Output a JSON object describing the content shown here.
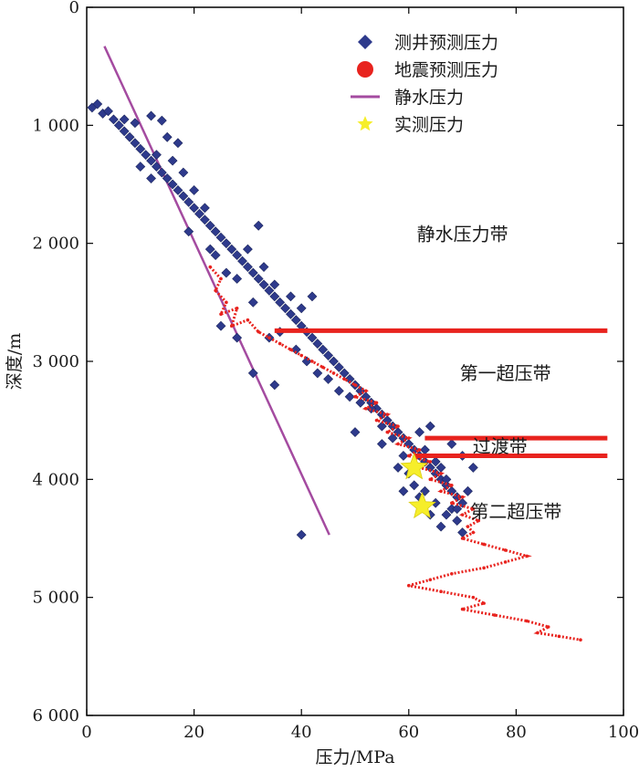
{
  "chart_data": {
    "type": "scatter",
    "xlabel": "压力/MPa",
    "ylabel": "深度/m",
    "xlim": [
      0,
      100
    ],
    "ylim": [
      0,
      6000
    ],
    "y_inverted": true,
    "x_ticks": [
      "0",
      "20",
      "40",
      "60",
      "80",
      "100"
    ],
    "y_ticks": [
      "0",
      "1 000",
      "2 000",
      "3 000",
      "4 000",
      "5 000",
      "6 000"
    ],
    "grid": false,
    "legend_position": "top-right",
    "legend": [
      {
        "label": "测井预测压力",
        "marker": "diamond",
        "color": "#2e3a8c"
      },
      {
        "label": "地震预测压力",
        "marker": "circle",
        "color": "#e8231e"
      },
      {
        "label": "静水压力",
        "marker": "line",
        "color": "#a44ba0"
      },
      {
        "label": "实测压力",
        "marker": "star",
        "color": "#f6ee2a"
      }
    ],
    "zones": [
      {
        "label": "静水压力带",
        "x": 70,
        "depth": 1920
      },
      {
        "label": "第一超压带",
        "x": 78,
        "depth": 3100
      },
      {
        "label": "过渡带",
        "x": 77,
        "depth": 3720
      },
      {
        "label": "第二超压带",
        "x": 80,
        "depth": 4270
      }
    ],
    "boundaries": [
      {
        "depth": 2740,
        "x_start": 35,
        "x_end": 97
      },
      {
        "depth": 3650,
        "x_start": 63,
        "x_end": 97
      },
      {
        "depth": 3800,
        "x_start": 61,
        "x_end": 97
      }
    ],
    "series": [
      {
        "name": "静水压力",
        "kind": "line",
        "points": [
          [
            3.3,
            330
          ],
          [
            45.2,
            4470
          ]
        ]
      },
      {
        "name": "实测压力",
        "kind": "star",
        "points": [
          [
            61,
            3900
          ],
          [
            62.5,
            4230
          ]
        ]
      },
      {
        "name": "测井预测压力",
        "kind": "diamond",
        "points": [
          [
            1,
            850
          ],
          [
            2,
            820
          ],
          [
            3,
            900
          ],
          [
            4,
            880
          ],
          [
            5,
            950
          ],
          [
            6,
            1000
          ],
          [
            7,
            1050
          ],
          [
            8,
            1100
          ],
          [
            9,
            1150
          ],
          [
            10,
            1200
          ],
          [
            11,
            1250
          ],
          [
            12,
            1300
          ],
          [
            13,
            1350
          ],
          [
            14,
            1400
          ],
          [
            15,
            1450
          ],
          [
            16,
            1500
          ],
          [
            17,
            1550
          ],
          [
            18,
            1600
          ],
          [
            19,
            1650
          ],
          [
            20,
            1700
          ],
          [
            21,
            1750
          ],
          [
            22,
            1800
          ],
          [
            23,
            1850
          ],
          [
            24,
            1900
          ],
          [
            25,
            1950
          ],
          [
            26,
            2000
          ],
          [
            27,
            2050
          ],
          [
            28,
            2100
          ],
          [
            29,
            2150
          ],
          [
            30,
            2200
          ],
          [
            31,
            2250
          ],
          [
            32,
            2300
          ],
          [
            33,
            2350
          ],
          [
            34,
            2400
          ],
          [
            35,
            2450
          ],
          [
            36,
            2500
          ],
          [
            37,
            2550
          ],
          [
            38,
            2600
          ],
          [
            39,
            2650
          ],
          [
            40,
            2700
          ],
          [
            41,
            2750
          ],
          [
            42,
            2800
          ],
          [
            43,
            2850
          ],
          [
            44,
            2900
          ],
          [
            45,
            2950
          ],
          [
            46,
            3000
          ],
          [
            47,
            3050
          ],
          [
            48,
            3100
          ],
          [
            49,
            3150
          ],
          [
            50,
            3200
          ],
          [
            51,
            3250
          ],
          [
            52,
            3300
          ],
          [
            53,
            3350
          ],
          [
            54,
            3400
          ],
          [
            55,
            3450
          ],
          [
            56,
            3500
          ],
          [
            57,
            3550
          ],
          [
            58,
            3600
          ],
          [
            59,
            3650
          ],
          [
            60,
            3700
          ],
          [
            61,
            3750
          ],
          [
            62,
            3800
          ],
          [
            63,
            3850
          ],
          [
            64,
            3900
          ],
          [
            65,
            3950
          ],
          [
            66,
            4000
          ],
          [
            67,
            4050
          ],
          [
            68,
            4100
          ],
          [
            69,
            4150
          ],
          [
            70,
            4200
          ],
          [
            7,
            950
          ],
          [
            9,
            980
          ],
          [
            12,
            920
          ],
          [
            14,
            960
          ],
          [
            15,
            1100
          ],
          [
            17,
            1150
          ],
          [
            10,
            1350
          ],
          [
            12,
            1450
          ],
          [
            16,
            1300
          ],
          [
            18,
            1400
          ],
          [
            20,
            1550
          ],
          [
            13,
            1250
          ],
          [
            22,
            1700
          ],
          [
            19,
            1900
          ],
          [
            24,
            2100
          ],
          [
            26,
            2250
          ],
          [
            23,
            2050
          ],
          [
            28,
            2300
          ],
          [
            30,
            2050
          ],
          [
            32,
            1850
          ],
          [
            33,
            2200
          ],
          [
            31,
            2500
          ],
          [
            35,
            2350
          ],
          [
            38,
            2450
          ],
          [
            40,
            2550
          ],
          [
            42,
            2450
          ],
          [
            36,
            2750
          ],
          [
            34,
            2800
          ],
          [
            39,
            2900
          ],
          [
            41,
            3000
          ],
          [
            43,
            3100
          ],
          [
            45,
            3150
          ],
          [
            47,
            3250
          ],
          [
            49,
            3300
          ],
          [
            51,
            3350
          ],
          [
            53,
            3400
          ],
          [
            55,
            3550
          ],
          [
            57,
            3650
          ],
          [
            59,
            3800
          ],
          [
            62,
            3600
          ],
          [
            64,
            3550
          ],
          [
            63,
            3750
          ],
          [
            65,
            3850
          ],
          [
            66,
            3900
          ],
          [
            67,
            4000
          ],
          [
            68,
            4250
          ],
          [
            69,
            4350
          ],
          [
            70,
            4450
          ],
          [
            66,
            4400
          ],
          [
            64,
            4300
          ],
          [
            62,
            4150
          ],
          [
            61,
            4050
          ],
          [
            60,
            3950
          ],
          [
            59,
            4100
          ],
          [
            63,
            4100
          ],
          [
            65,
            4200
          ],
          [
            67,
            4300
          ],
          [
            69,
            4250
          ],
          [
            71,
            4100
          ],
          [
            70,
            3800
          ],
          [
            72,
            3900
          ],
          [
            68,
            3700
          ],
          [
            31,
            3100
          ],
          [
            28,
            2800
          ],
          [
            25,
            2700
          ],
          [
            40,
            4470
          ],
          [
            35,
            3200
          ],
          [
            50,
            3600
          ],
          [
            55,
            3700
          ],
          [
            58,
            3900
          ]
        ]
      },
      {
        "name": "地震预测压力",
        "kind": "dots",
        "points": [
          [
            23,
            2200
          ],
          [
            25,
            2300
          ],
          [
            24,
            2400
          ],
          [
            26,
            2500
          ],
          [
            25,
            2600
          ],
          [
            28,
            2550
          ],
          [
            27,
            2700
          ],
          [
            30,
            2650
          ],
          [
            32,
            2750
          ],
          [
            34,
            2800
          ],
          [
            36,
            2850
          ],
          [
            38,
            2900
          ],
          [
            40,
            2950
          ],
          [
            42,
            3000
          ],
          [
            44,
            3050
          ],
          [
            46,
            3100
          ],
          [
            48,
            3150
          ],
          [
            50,
            3200
          ],
          [
            52,
            3250
          ],
          [
            50,
            3300
          ],
          [
            54,
            3350
          ],
          [
            52,
            3400
          ],
          [
            56,
            3450
          ],
          [
            54,
            3500
          ],
          [
            58,
            3550
          ],
          [
            56,
            3600
          ],
          [
            60,
            3650
          ],
          [
            58,
            3700
          ],
          [
            62,
            3750
          ],
          [
            60,
            3800
          ],
          [
            64,
            3850
          ],
          [
            62,
            3900
          ],
          [
            66,
            3950
          ],
          [
            64,
            4000
          ],
          [
            68,
            4050
          ],
          [
            66,
            4100
          ],
          [
            70,
            4150
          ],
          [
            68,
            4200
          ],
          [
            72,
            4250
          ],
          [
            70,
            4300
          ],
          [
            73,
            4350
          ],
          [
            71,
            4400
          ],
          [
            72,
            4450
          ],
          [
            70,
            4500
          ],
          [
            74,
            4550
          ],
          [
            78,
            4600
          ],
          [
            82,
            4650
          ],
          [
            78,
            4700
          ],
          [
            74,
            4750
          ],
          [
            68,
            4800
          ],
          [
            64,
            4850
          ],
          [
            60,
            4900
          ],
          [
            66,
            4950
          ],
          [
            72,
            5000
          ],
          [
            74,
            5050
          ],
          [
            70,
            5100
          ],
          [
            76,
            5150
          ],
          [
            82,
            5200
          ],
          [
            86,
            5250
          ],
          [
            84,
            5300
          ],
          [
            88,
            5330
          ],
          [
            92,
            5360
          ]
        ]
      }
    ]
  }
}
